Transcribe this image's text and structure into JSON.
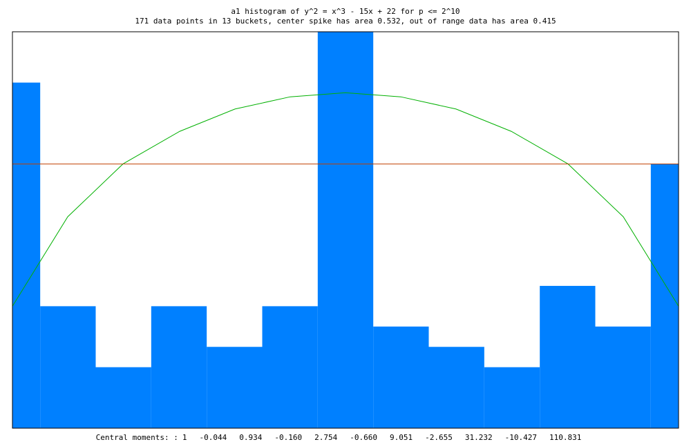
{
  "chart_data": {
    "type": "histogram",
    "title": "a1 histogram of y^2 = x^3 - 15x + 22 for p <= 2^10",
    "subtitle": "171 data points in 13 buckets, center spike has area 0.532, out of range data has area 0.415",
    "bins": [
      -2,
      -1.8333,
      -1.5,
      -1.1667,
      -0.8333,
      -0.5,
      -0.1667,
      0.1667,
      0.5,
      0.8333,
      1.1667,
      1.5,
      1.8333,
      2
    ],
    "values": [
      17,
      6,
      3,
      6,
      4,
      6,
      19.5,
      5,
      4,
      3,
      7,
      5,
      13
    ],
    "color": "#0080ff",
    "xlim": [
      -2,
      2
    ],
    "ylim": [
      0,
      19.5
    ],
    "series": [
      {
        "color": "#00b000",
        "x": [
          -2,
          -1.668,
          -1.336,
          -0.996,
          -0.664,
          -0.332,
          0,
          0.332,
          0.664,
          0.996,
          1.336,
          1.668,
          2
        ],
        "values": [
          6,
          10.4,
          13,
          14.6,
          15.7,
          16.3,
          16.5,
          16.3,
          15.7,
          14.6,
          13,
          10.4,
          6
        ]
      },
      {
        "color": "#c04000",
        "x": [
          -2,
          2
        ],
        "values": [
          13,
          13
        ]
      }
    ],
    "footer": {
      "label": "Central moments: :",
      "moments": [
        1,
        -0.044,
        0.934,
        {
          "value": -0.16,
          "label": "-0.160"
        },
        2.754,
        {
          "value": -0.66,
          "label": "-0.660"
        },
        9.051,
        -2.655,
        31.232,
        -10.427,
        110.831
      ]
    }
  }
}
